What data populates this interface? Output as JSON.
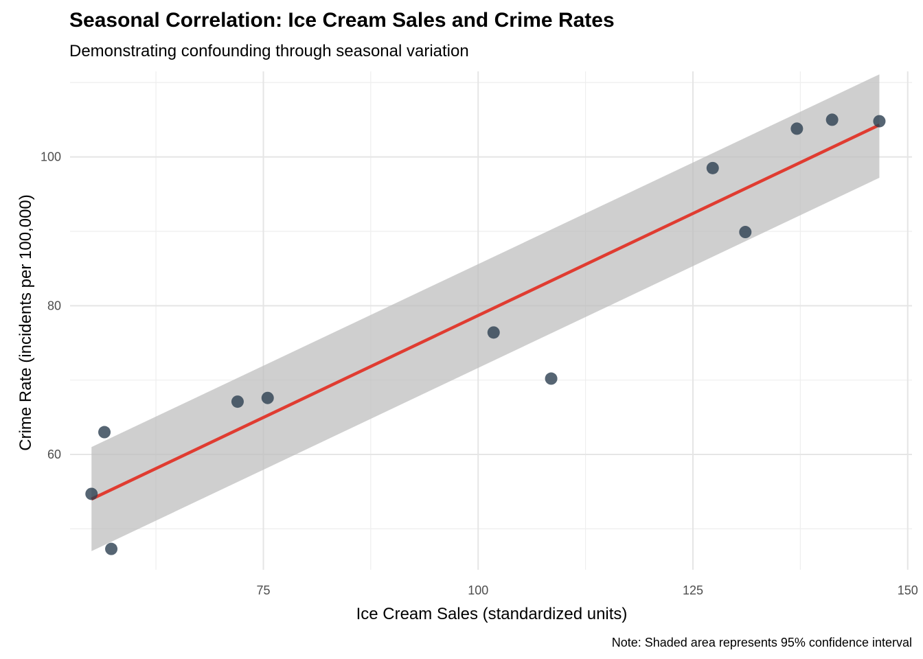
{
  "chart_data": {
    "type": "scatter",
    "title": "Seasonal Correlation: Ice Cream Sales and Crime Rates",
    "subtitle": "Demonstrating confounding through seasonal variation",
    "xlabel": "Ice Cream Sales (standardized units)",
    "ylabel": "Crime Rate (incidents per 100,000)",
    "caption": "Note: Shaded area represents 95% confidence interval",
    "xlim": [
      52.5,
      150.5
    ],
    "ylim": [
      44.5,
      111.5
    ],
    "x_ticks": [
      75,
      100,
      125,
      150
    ],
    "y_ticks": [
      60,
      80,
      100
    ],
    "x_minor_ticks": [
      62.5,
      87.5,
      112.5,
      137.5
    ],
    "y_minor_ticks": [
      50,
      70,
      90,
      110
    ],
    "grid": true,
    "colors": {
      "points": "#2c3e50",
      "fit_line": "#e03c31",
      "ci_band": "#bdbdbd",
      "grid": "#e5e5e5"
    },
    "points": [
      {
        "x": 55.0,
        "y": 54.7
      },
      {
        "x": 56.5,
        "y": 63.0
      },
      {
        "x": 57.3,
        "y": 47.3
      },
      {
        "x": 72.0,
        "y": 67.1
      },
      {
        "x": 75.5,
        "y": 67.6
      },
      {
        "x": 101.8,
        "y": 76.4
      },
      {
        "x": 108.5,
        "y": 70.2
      },
      {
        "x": 127.3,
        "y": 98.5
      },
      {
        "x": 131.1,
        "y": 89.9
      },
      {
        "x": 137.1,
        "y": 103.8
      },
      {
        "x": 141.2,
        "y": 105.0
      },
      {
        "x": 146.7,
        "y": 104.8
      }
    ],
    "fit": {
      "x": [
        55.0,
        146.7
      ],
      "y": [
        54.0,
        104.3
      ],
      "ci_lower": [
        47.0,
        97.2
      ],
      "ci_upper": [
        61.0,
        111.1
      ]
    }
  }
}
